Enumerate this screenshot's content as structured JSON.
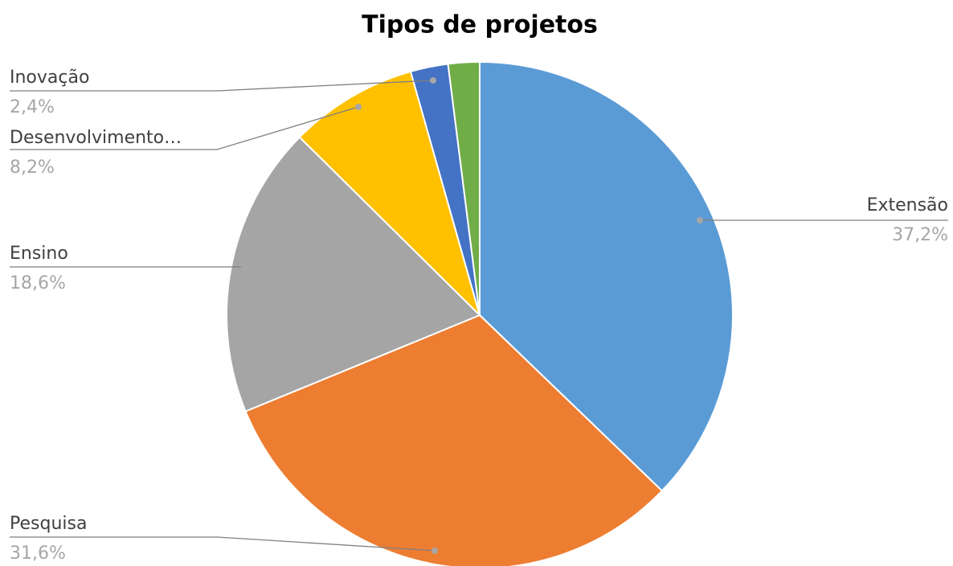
{
  "chart_data": {
    "type": "pie",
    "title": "Tipos de projetos",
    "categories": [
      "Extensão",
      "Pesquisa",
      "Ensino",
      "Desenvolvimento…",
      "Inovação",
      null
    ],
    "values": [
      37.2,
      31.6,
      18.6,
      8.2,
      2.4,
      2.0
    ],
    "value_labels": [
      "37,2%",
      "31,6%",
      "18,6%",
      "8,2%",
      "2,4%",
      null
    ],
    "colors": [
      "#5b9bd5",
      "#ed7d31",
      "#a5a5a5",
      "#ffc000",
      "#4472c4",
      "#70ad47"
    ]
  }
}
